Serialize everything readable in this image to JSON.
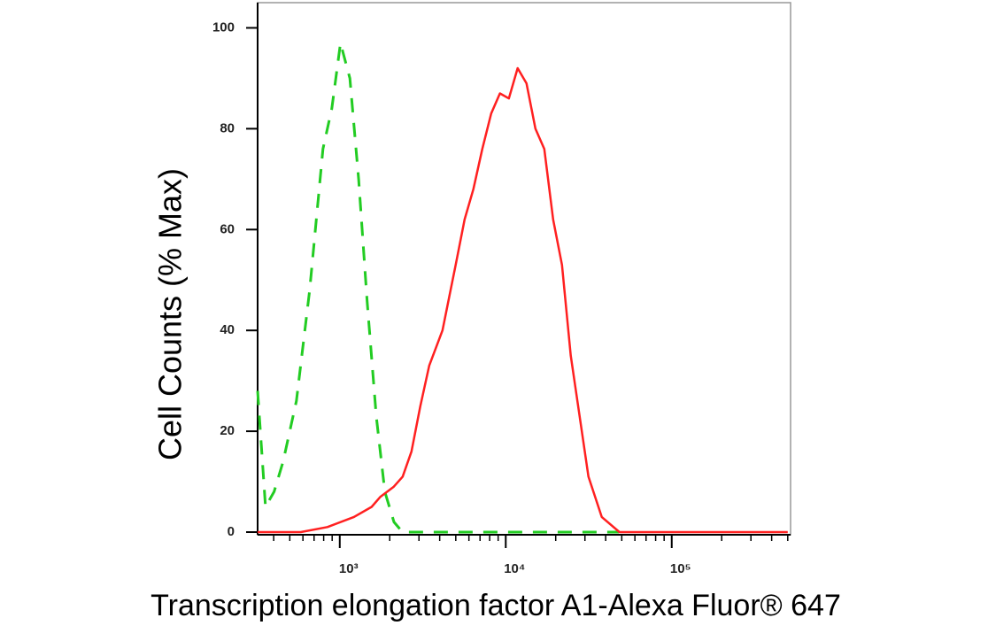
{
  "chart_data": {
    "type": "line",
    "ylabel": "Cell Counts (% Max)",
    "xlabel": "Transcription elongation factor A1-Alexa Fluor® 647",
    "xscale": "log",
    "xlim": [
      320,
      520000
    ],
    "ylim": [
      0,
      105
    ],
    "xticks": [
      {
        "value": 1000,
        "label": "10³"
      },
      {
        "value": 10000,
        "label": "10⁴"
      },
      {
        "value": 100000,
        "label": "10⁵"
      }
    ],
    "xminorticks": [
      400,
      500,
      600,
      700,
      800,
      900,
      2000,
      3000,
      4000,
      5000,
      6000,
      7000,
      8000,
      9000,
      20000,
      30000,
      40000,
      50000,
      60000,
      70000,
      80000,
      90000,
      200000,
      300000,
      400000,
      500000
    ],
    "yticks": [
      0,
      20,
      40,
      60,
      80,
      100
    ],
    "series": [
      {
        "color": "#22cc22",
        "dashed": true,
        "x": [
          320,
          357,
          402,
          456,
          548,
          659,
          792,
          896,
          1010,
          1150,
          1300,
          1460,
          1660,
          1870,
          2120,
          2390,
          48000
        ],
        "values": [
          28,
          5,
          8,
          14,
          26,
          48,
          76,
          84,
          97,
          90,
          70,
          46,
          23,
          8,
          2,
          0,
          0
        ]
      },
      {
        "color": "#ff2020",
        "dashed": false,
        "x": [
          320,
          582,
          842,
          1217,
          1556,
          1758,
          2115,
          2392,
          2704,
          3057,
          3456,
          4155,
          4995,
          5649,
          6385,
          7221,
          8164,
          9230,
          10440,
          11800,
          13340,
          15090,
          17060,
          19290,
          21810,
          24650,
          27870,
          31510,
          37880,
          48420,
          500000
        ],
        "values": [
          0,
          0,
          1,
          3,
          5,
          7,
          9,
          11,
          16,
          25,
          33,
          40,
          53,
          62,
          68,
          76,
          83,
          87,
          86,
          92,
          89,
          80,
          76,
          62,
          53,
          35,
          23,
          11,
          3,
          0,
          0
        ]
      }
    ]
  }
}
